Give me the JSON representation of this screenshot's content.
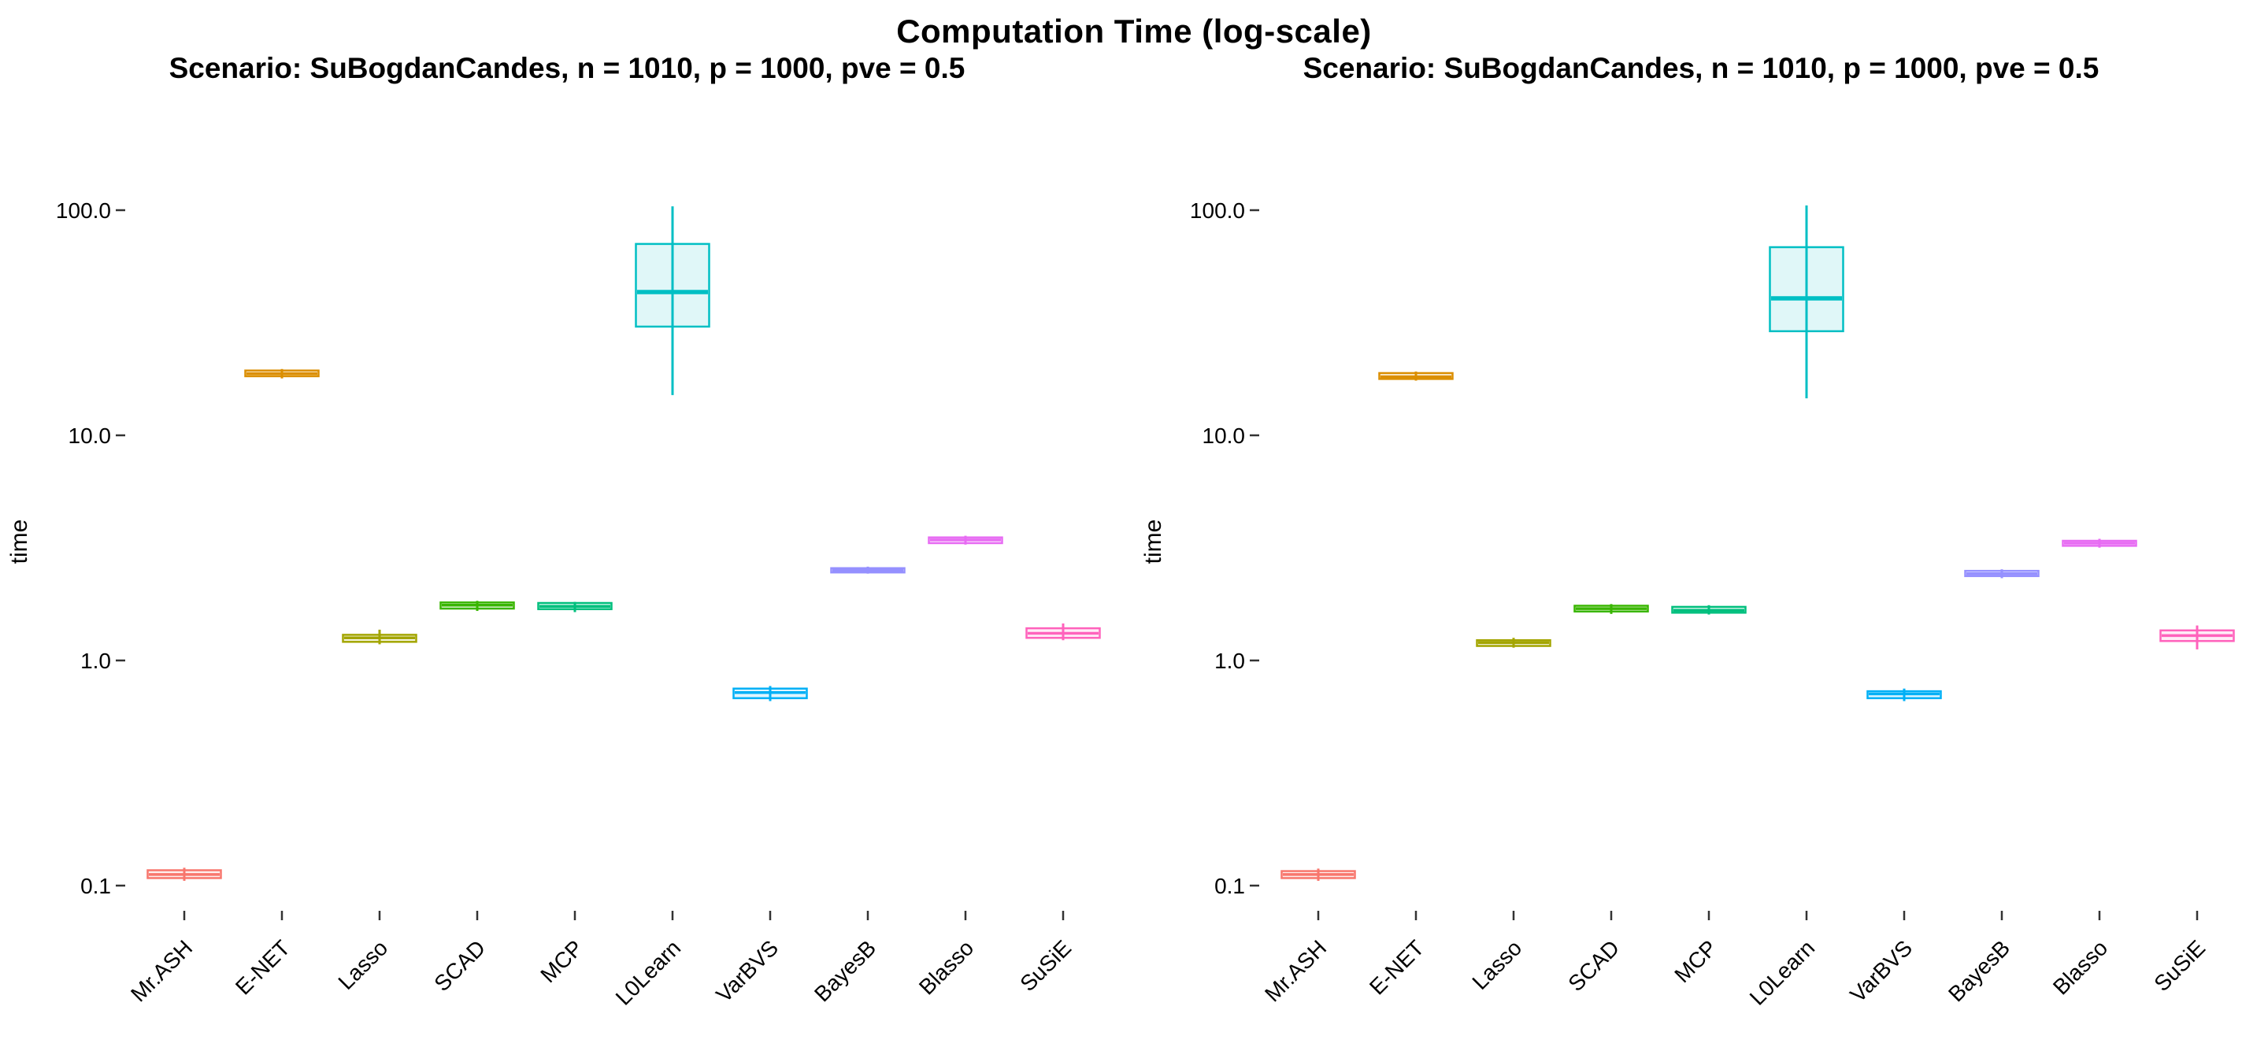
{
  "title": "Computation Time (log-scale)",
  "colors": {
    "background": "#ffffff",
    "text": "#000000",
    "tick": "#333333"
  },
  "chart_data": [
    {
      "type": "boxplot",
      "panel": "left",
      "subtitle": "Scenario: SuBogdanCandes, n = 1010, p = 1000, pve = 0.5",
      "ylabel": "time",
      "yscale": "log10",
      "ylim": [
        0.09,
        120
      ],
      "grid": false,
      "yticks": [
        {
          "value": 0.1,
          "label": "0.1"
        },
        {
          "value": 1,
          "label": "1.0"
        },
        {
          "value": 10,
          "label": "10.0"
        },
        {
          "value": 100,
          "label": "100.0"
        }
      ],
      "categories": [
        "Mr.ASH",
        "E-NET",
        "Lasso",
        "SCAD",
        "MCP",
        "L0Learn",
        "VarBVS",
        "BayesB",
        "Blasso",
        "SuSiE"
      ],
      "series": [
        {
          "name": "Mr.ASH",
          "color": "#F8766D",
          "whisker_low": 0.105,
          "q1": 0.108,
          "median": 0.112,
          "q3": 0.117,
          "whisker_high": 0.12
        },
        {
          "name": "E-NET",
          "color": "#DB8E00",
          "whisker_low": 17.9,
          "q1": 18.3,
          "median": 18.8,
          "q3": 19.4,
          "whisker_high": 19.7
        },
        {
          "name": "Lasso",
          "color": "#A3A500",
          "whisker_low": 1.18,
          "q1": 1.21,
          "median": 1.26,
          "q3": 1.3,
          "whisker_high": 1.37
        },
        {
          "name": "SCAD",
          "color": "#39B600",
          "whisker_low": 1.66,
          "q1": 1.7,
          "median": 1.76,
          "q3": 1.81,
          "whisker_high": 1.84
        },
        {
          "name": "MCP",
          "color": "#00BF7D",
          "whisker_low": 1.64,
          "q1": 1.69,
          "median": 1.74,
          "q3": 1.8,
          "whisker_high": 1.82
        },
        {
          "name": "L0Learn",
          "color": "#00BFC4",
          "whisker_low": 15.1,
          "q1": 30.4,
          "median": 43.3,
          "q3": 70.8,
          "whisker_high": 104
        },
        {
          "name": "VarBVS",
          "color": "#00B0F6",
          "whisker_low": 0.66,
          "q1": 0.68,
          "median": 0.72,
          "q3": 0.75,
          "whisker_high": 0.77
        },
        {
          "name": "BayesB",
          "color": "#9590FF",
          "whisker_low": 2.43,
          "q1": 2.46,
          "median": 2.52,
          "q3": 2.57,
          "whisker_high": 2.61
        },
        {
          "name": "Blasso",
          "color": "#E76BF3",
          "whisker_low": 3.27,
          "q1": 3.32,
          "median": 3.43,
          "q3": 3.52,
          "whisker_high": 3.58
        },
        {
          "name": "SuSiE",
          "color": "#FF62BC",
          "whisker_low": 1.23,
          "q1": 1.26,
          "median": 1.32,
          "q3": 1.39,
          "whisker_high": 1.46
        }
      ]
    },
    {
      "type": "boxplot",
      "panel": "right",
      "subtitle": "Scenario: SuBogdanCandes, n = 1010, p = 1000, pve = 0.5",
      "ylabel": "time",
      "yscale": "log10",
      "ylim": [
        0.09,
        120
      ],
      "grid": false,
      "yticks": [
        {
          "value": 0.1,
          "label": "0.1"
        },
        {
          "value": 1,
          "label": "1.0"
        },
        {
          "value": 10,
          "label": "10.0"
        },
        {
          "value": 100,
          "label": "100.0"
        }
      ],
      "categories": [
        "Mr.ASH",
        "E-NET",
        "Lasso",
        "SCAD",
        "MCP",
        "L0Learn",
        "VarBVS",
        "BayesB",
        "Blasso",
        "SuSiE"
      ],
      "series": [
        {
          "name": "Mr.ASH",
          "color": "#F8766D",
          "whisker_low": 0.105,
          "q1": 0.108,
          "median": 0.112,
          "q3": 0.116,
          "whisker_high": 0.119
        },
        {
          "name": "E-NET",
          "color": "#DB8E00",
          "whisker_low": 17.5,
          "q1": 17.8,
          "median": 18.2,
          "q3": 18.9,
          "whisker_high": 19.2
        },
        {
          "name": "Lasso",
          "color": "#A3A500",
          "whisker_low": 1.14,
          "q1": 1.16,
          "median": 1.2,
          "q3": 1.23,
          "whisker_high": 1.26
        },
        {
          "name": "SCAD",
          "color": "#39B600",
          "whisker_low": 1.61,
          "q1": 1.65,
          "median": 1.7,
          "q3": 1.75,
          "whisker_high": 1.78
        },
        {
          "name": "MCP",
          "color": "#00BF7D",
          "whisker_low": 1.6,
          "q1": 1.63,
          "median": 1.67,
          "q3": 1.73,
          "whisker_high": 1.76
        },
        {
          "name": "L0Learn",
          "color": "#00BFC4",
          "whisker_low": 14.6,
          "q1": 29.0,
          "median": 40.6,
          "q3": 68.5,
          "whisker_high": 105
        },
        {
          "name": "VarBVS",
          "color": "#00B0F6",
          "whisker_low": 0.66,
          "q1": 0.68,
          "median": 0.71,
          "q3": 0.73,
          "whisker_high": 0.75
        },
        {
          "name": "BayesB",
          "color": "#9590FF",
          "whisker_low": 2.32,
          "q1": 2.37,
          "median": 2.43,
          "q3": 2.5,
          "whisker_high": 2.54
        },
        {
          "name": "Blasso",
          "color": "#E76BF3",
          "whisker_low": 3.17,
          "q1": 3.23,
          "median": 3.32,
          "q3": 3.4,
          "whisker_high": 3.47
        },
        {
          "name": "SuSiE",
          "color": "#FF62BC",
          "whisker_low": 1.12,
          "q1": 1.22,
          "median": 1.29,
          "q3": 1.36,
          "whisker_high": 1.43
        }
      ]
    }
  ]
}
